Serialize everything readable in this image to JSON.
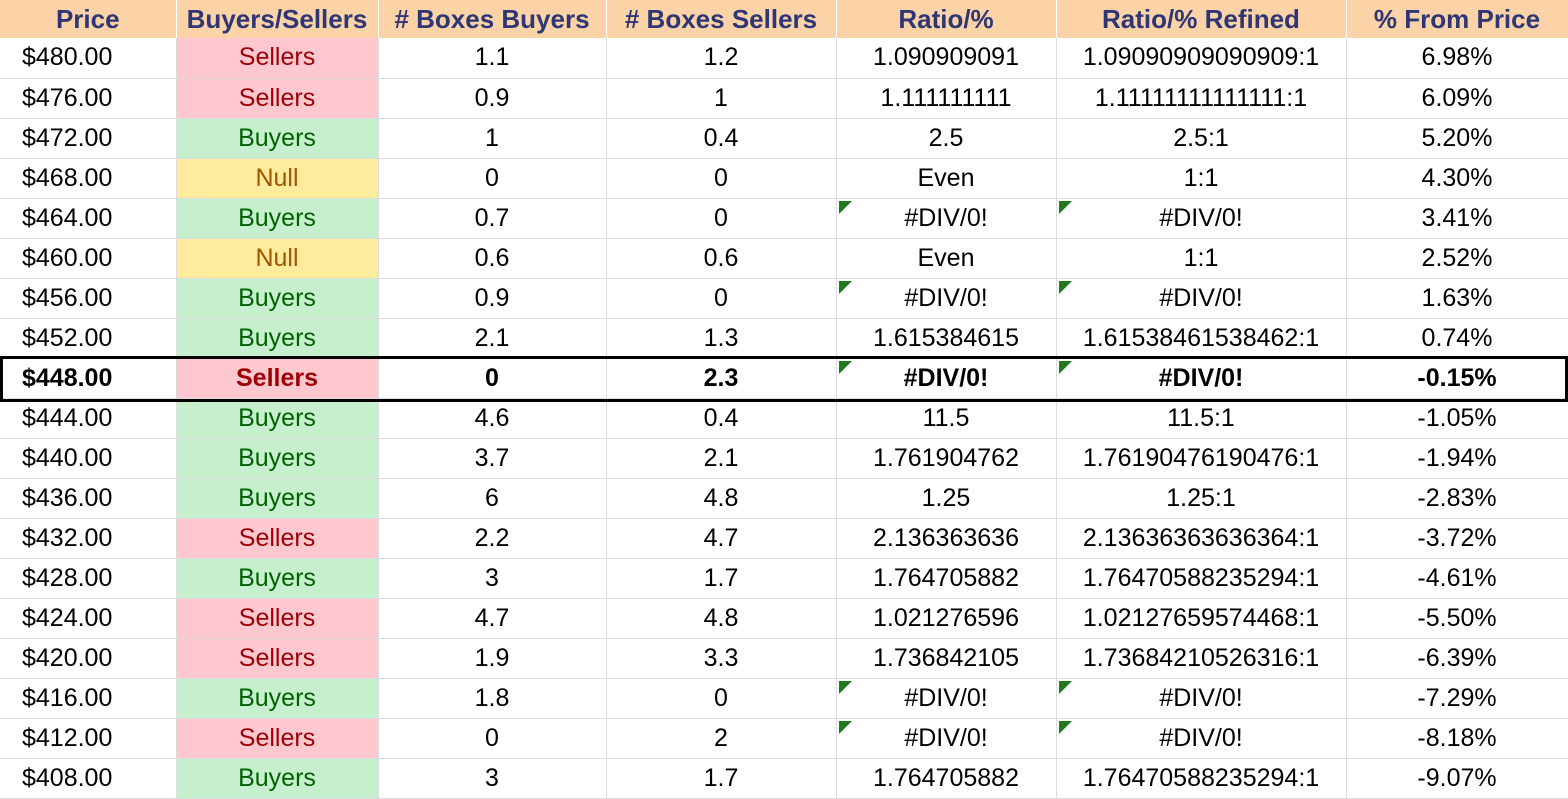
{
  "headers": [
    "Price",
    "Buyers/Sellers",
    "# Boxes Buyers",
    "# Boxes Sellers",
    "Ratio/%",
    "Ratio/% Refined",
    "% From Price"
  ],
  "colors": {
    "header_bg": "#fbd3a6",
    "header_text": "#2e3676",
    "sellers_bg": "#ffc7ce",
    "sellers_text": "#9c0006",
    "buyers_bg": "#c6efce",
    "buyers_text": "#006100",
    "null_bg": "#ffeb9c",
    "null_text": "#9c5700",
    "error_marker": "#1f7a1f"
  },
  "current_row_index": 8,
  "rows": [
    {
      "price": "$480.00",
      "side": "Sellers",
      "buyers": "1.1",
      "sellers": "1.2",
      "ratio": "1.090909091",
      "refined": "1.09090909090909:1",
      "from_price": "6.98%",
      "err": false
    },
    {
      "price": "$476.00",
      "side": "Sellers",
      "buyers": "0.9",
      "sellers": "1",
      "ratio": "1.111111111",
      "refined": "1.11111111111111:1",
      "from_price": "6.09%",
      "err": false
    },
    {
      "price": "$472.00",
      "side": "Buyers",
      "buyers": "1",
      "sellers": "0.4",
      "ratio": "2.5",
      "refined": "2.5:1",
      "from_price": "5.20%",
      "err": false
    },
    {
      "price": "$468.00",
      "side": "Null",
      "buyers": "0",
      "sellers": "0",
      "ratio": "Even",
      "refined": "1:1",
      "from_price": "4.30%",
      "err": false
    },
    {
      "price": "$464.00",
      "side": "Buyers",
      "buyers": "0.7",
      "sellers": "0",
      "ratio": "#DIV/0!",
      "refined": "#DIV/0!",
      "from_price": "3.41%",
      "err": true
    },
    {
      "price": "$460.00",
      "side": "Null",
      "buyers": "0.6",
      "sellers": "0.6",
      "ratio": "Even",
      "refined": "1:1",
      "from_price": "2.52%",
      "err": false
    },
    {
      "price": "$456.00",
      "side": "Buyers",
      "buyers": "0.9",
      "sellers": "0",
      "ratio": "#DIV/0!",
      "refined": "#DIV/0!",
      "from_price": "1.63%",
      "err": true
    },
    {
      "price": "$452.00",
      "side": "Buyers",
      "buyers": "2.1",
      "sellers": "1.3",
      "ratio": "1.615384615",
      "refined": "1.61538461538462:1",
      "from_price": "0.74%",
      "err": false
    },
    {
      "price": "$448.00",
      "side": "Sellers",
      "buyers": "0",
      "sellers": "2.3",
      "ratio": "#DIV/0!",
      "refined": "#DIV/0!",
      "from_price": "-0.15%",
      "err": true
    },
    {
      "price": "$444.00",
      "side": "Buyers",
      "buyers": "4.6",
      "sellers": "0.4",
      "ratio": "11.5",
      "refined": "11.5:1",
      "from_price": "-1.05%",
      "err": false
    },
    {
      "price": "$440.00",
      "side": "Buyers",
      "buyers": "3.7",
      "sellers": "2.1",
      "ratio": "1.761904762",
      "refined": "1.76190476190476:1",
      "from_price": "-1.94%",
      "err": false
    },
    {
      "price": "$436.00",
      "side": "Buyers",
      "buyers": "6",
      "sellers": "4.8",
      "ratio": "1.25",
      "refined": "1.25:1",
      "from_price": "-2.83%",
      "err": false
    },
    {
      "price": "$432.00",
      "side": "Sellers",
      "buyers": "2.2",
      "sellers": "4.7",
      "ratio": "2.136363636",
      "refined": "2.13636363636364:1",
      "from_price": "-3.72%",
      "err": false
    },
    {
      "price": "$428.00",
      "side": "Buyers",
      "buyers": "3",
      "sellers": "1.7",
      "ratio": "1.764705882",
      "refined": "1.76470588235294:1",
      "from_price": "-4.61%",
      "err": false
    },
    {
      "price": "$424.00",
      "side": "Sellers",
      "buyers": "4.7",
      "sellers": "4.8",
      "ratio": "1.021276596",
      "refined": "1.02127659574468:1",
      "from_price": "-5.50%",
      "err": false
    },
    {
      "price": "$420.00",
      "side": "Sellers",
      "buyers": "1.9",
      "sellers": "3.3",
      "ratio": "1.736842105",
      "refined": "1.73684210526316:1",
      "from_price": "-6.39%",
      "err": false
    },
    {
      "price": "$416.00",
      "side": "Buyers",
      "buyers": "1.8",
      "sellers": "0",
      "ratio": "#DIV/0!",
      "refined": "#DIV/0!",
      "from_price": "-7.29%",
      "err": true
    },
    {
      "price": "$412.00",
      "side": "Sellers",
      "buyers": "0",
      "sellers": "2",
      "ratio": "#DIV/0!",
      "refined": "#DIV/0!",
      "from_price": "-8.18%",
      "err": true
    },
    {
      "price": "$408.00",
      "side": "Buyers",
      "buyers": "3",
      "sellers": "1.7",
      "ratio": "1.764705882",
      "refined": "1.76470588235294:1",
      "from_price": "-9.07%",
      "err": false
    }
  ]
}
